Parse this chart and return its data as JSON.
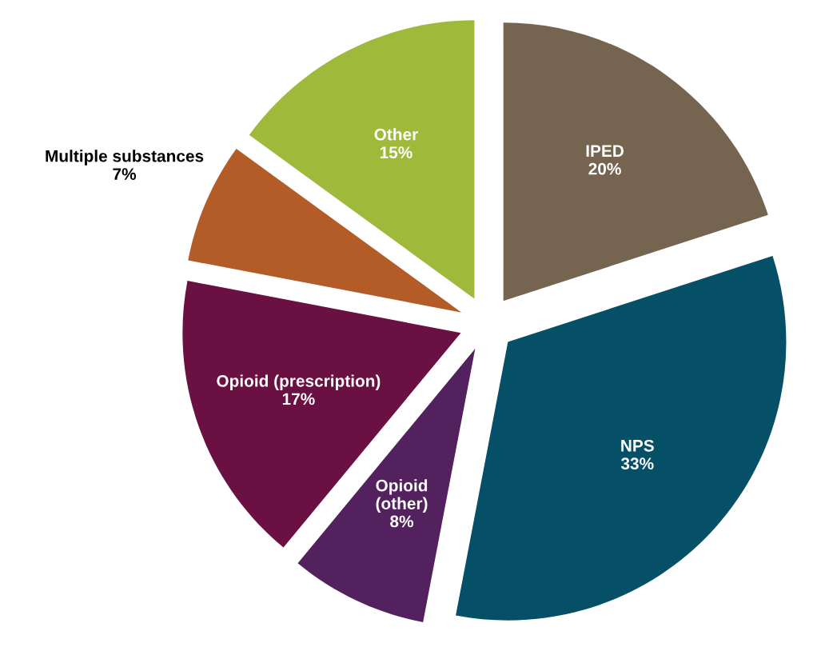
{
  "chart_data": {
    "type": "pie",
    "categories": [
      "IPED",
      "NPS",
      "Opioid\n(other)",
      "Opioid (prescription)",
      "Multiple substances",
      "Other"
    ],
    "values": [
      20,
      33,
      8,
      17,
      7,
      15
    ],
    "colors": [
      "#756450",
      "#055066",
      "#52215e",
      "#6a1042",
      "#b35c27",
      "#9fb93b"
    ],
    "value_labels": [
      "20%",
      "33%",
      "8%",
      "17%",
      "7%",
      "15%"
    ]
  }
}
